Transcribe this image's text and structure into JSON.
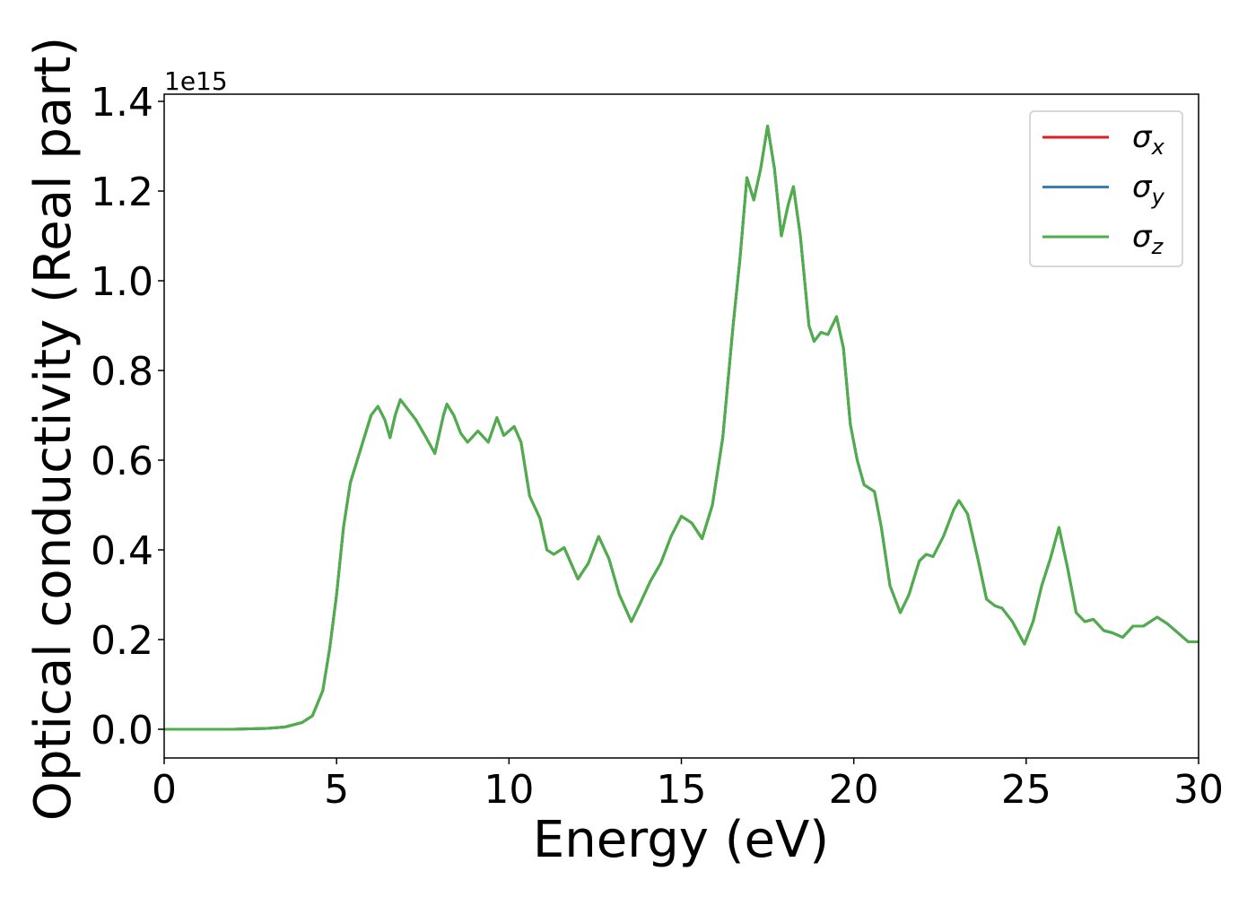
{
  "chart_data": {
    "type": "line",
    "x_label": "Energy (eV)",
    "y_label": "Optical conductivity (Real part)",
    "y_offset_label": "1e15",
    "x": [
      0,
      2,
      3,
      3.5,
      4,
      4.3,
      4.6,
      4.8,
      5.0,
      5.2,
      5.4,
      5.6,
      5.8,
      6.0,
      6.2,
      6.4,
      6.55,
      6.7,
      6.85,
      7.0,
      7.3,
      7.6,
      7.85,
      8.1,
      8.2,
      8.4,
      8.6,
      8.8,
      9.1,
      9.4,
      9.65,
      9.85,
      10.15,
      10.35,
      10.6,
      10.9,
      11.1,
      11.3,
      11.6,
      11.8,
      12.0,
      12.3,
      12.6,
      12.9,
      13.2,
      13.55,
      13.8,
      14.1,
      14.4,
      14.7,
      15.0,
      15.3,
      15.6,
      15.9,
      16.2,
      16.5,
      16.7,
      16.9,
      17.1,
      17.3,
      17.5,
      17.7,
      17.9,
      18.1,
      18.25,
      18.45,
      18.7,
      18.85,
      19.05,
      19.25,
      19.5,
      19.7,
      19.9,
      20.1,
      20.3,
      20.6,
      20.8,
      21.05,
      21.35,
      21.6,
      21.9,
      22.1,
      22.3,
      22.6,
      22.9,
      23.05,
      23.3,
      23.6,
      23.85,
      24.1,
      24.3,
      24.6,
      24.95,
      25.2,
      25.45,
      25.7,
      25.95,
      26.2,
      26.45,
      26.7,
      26.95,
      27.25,
      27.5,
      27.8,
      28.1,
      28.4,
      28.8,
      29.1,
      29.4,
      29.7,
      30
    ],
    "series": [
      {
        "name": "σx",
        "color": "#e41a1c",
        "values": [
          0,
          0.0,
          0.002,
          0.005,
          0.015,
          0.03,
          0.086,
          0.18,
          0.3,
          0.45,
          0.55,
          0.6,
          0.65,
          0.7,
          0.72,
          0.69,
          0.65,
          0.7,
          0.735,
          0.72,
          0.69,
          0.65,
          0.615,
          0.7,
          0.725,
          0.7,
          0.66,
          0.64,
          0.665,
          0.64,
          0.695,
          0.655,
          0.675,
          0.64,
          0.52,
          0.47,
          0.4,
          0.39,
          0.405,
          0.37,
          0.335,
          0.37,
          0.43,
          0.38,
          0.3,
          0.24,
          0.28,
          0.33,
          0.37,
          0.43,
          0.475,
          0.46,
          0.425,
          0.5,
          0.65,
          0.9,
          1.05,
          1.23,
          1.18,
          1.25,
          1.345,
          1.25,
          1.1,
          1.17,
          1.21,
          1.1,
          0.9,
          0.865,
          0.885,
          0.88,
          0.92,
          0.85,
          0.68,
          0.6,
          0.545,
          0.53,
          0.45,
          0.32,
          0.26,
          0.3,
          0.375,
          0.39,
          0.385,
          0.43,
          0.49,
          0.51,
          0.48,
          0.38,
          0.29,
          0.275,
          0.27,
          0.24,
          0.19,
          0.24,
          0.32,
          0.38,
          0.45,
          0.36,
          0.26,
          0.24,
          0.245,
          0.22,
          0.215,
          0.205,
          0.23,
          0.23,
          0.25,
          0.235,
          0.215,
          0.195,
          0.195
        ]
      },
      {
        "name": "σy",
        "color": "#377eb8",
        "values": [
          0,
          0.0,
          0.002,
          0.005,
          0.015,
          0.03,
          0.086,
          0.18,
          0.3,
          0.45,
          0.55,
          0.6,
          0.65,
          0.7,
          0.72,
          0.69,
          0.65,
          0.7,
          0.735,
          0.72,
          0.69,
          0.65,
          0.615,
          0.7,
          0.725,
          0.7,
          0.66,
          0.64,
          0.665,
          0.64,
          0.695,
          0.655,
          0.675,
          0.64,
          0.52,
          0.47,
          0.4,
          0.39,
          0.405,
          0.37,
          0.335,
          0.37,
          0.43,
          0.38,
          0.3,
          0.24,
          0.28,
          0.33,
          0.37,
          0.43,
          0.475,
          0.46,
          0.425,
          0.5,
          0.65,
          0.9,
          1.05,
          1.23,
          1.18,
          1.25,
          1.345,
          1.25,
          1.1,
          1.17,
          1.21,
          1.1,
          0.9,
          0.865,
          0.885,
          0.88,
          0.92,
          0.85,
          0.68,
          0.6,
          0.545,
          0.53,
          0.45,
          0.32,
          0.26,
          0.3,
          0.375,
          0.39,
          0.385,
          0.43,
          0.49,
          0.51,
          0.48,
          0.38,
          0.29,
          0.275,
          0.27,
          0.24,
          0.19,
          0.24,
          0.32,
          0.38,
          0.45,
          0.36,
          0.26,
          0.24,
          0.245,
          0.22,
          0.215,
          0.205,
          0.23,
          0.23,
          0.25,
          0.235,
          0.215,
          0.195,
          0.195
        ]
      },
      {
        "name": "σz",
        "color": "#4daf4a",
        "values": [
          0,
          0.0,
          0.002,
          0.005,
          0.015,
          0.03,
          0.086,
          0.18,
          0.3,
          0.45,
          0.55,
          0.6,
          0.65,
          0.7,
          0.72,
          0.69,
          0.65,
          0.7,
          0.735,
          0.72,
          0.69,
          0.65,
          0.615,
          0.7,
          0.725,
          0.7,
          0.66,
          0.64,
          0.665,
          0.64,
          0.695,
          0.655,
          0.675,
          0.64,
          0.52,
          0.47,
          0.4,
          0.39,
          0.405,
          0.37,
          0.335,
          0.37,
          0.43,
          0.38,
          0.3,
          0.24,
          0.28,
          0.33,
          0.37,
          0.43,
          0.475,
          0.46,
          0.425,
          0.5,
          0.65,
          0.9,
          1.05,
          1.23,
          1.18,
          1.25,
          1.345,
          1.25,
          1.1,
          1.17,
          1.21,
          1.1,
          0.9,
          0.865,
          0.885,
          0.88,
          0.92,
          0.85,
          0.68,
          0.6,
          0.545,
          0.53,
          0.45,
          0.32,
          0.26,
          0.3,
          0.375,
          0.39,
          0.385,
          0.43,
          0.49,
          0.51,
          0.48,
          0.38,
          0.29,
          0.275,
          0.27,
          0.24,
          0.19,
          0.24,
          0.32,
          0.38,
          0.45,
          0.36,
          0.26,
          0.24,
          0.245,
          0.22,
          0.215,
          0.205,
          0.23,
          0.23,
          0.25,
          0.235,
          0.215,
          0.195,
          0.195
        ]
      }
    ],
    "xlim": [
      0,
      30
    ],
    "xticks": [
      0,
      5,
      10,
      15,
      20,
      25,
      30
    ],
    "ylim": [
      -0.064,
      1.416
    ],
    "yticks": [
      {
        "value": 0,
        "label": "0.0"
      },
      0.2,
      0.4,
      0.6,
      0.8,
      {
        "value": 1,
        "label": "1.0"
      },
      1.2,
      1.4
    ],
    "grid": false,
    "legend": "upper right"
  }
}
